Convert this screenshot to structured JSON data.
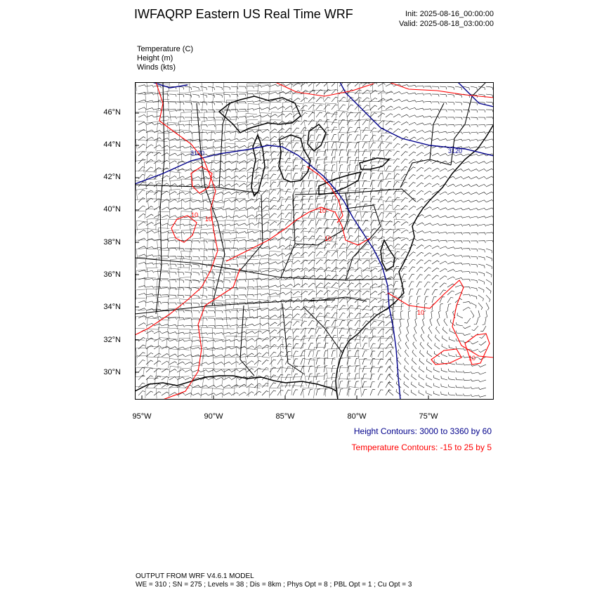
{
  "header": {
    "title": "IWFAQRP Eastern US Real Time WRF",
    "init": "Init: 2025-08-16_00:00:00",
    "valid": "Valid: 2025-08-18_03:00:00"
  },
  "fields": [
    "Temperature   (C)",
    "Height   (m)",
    "Winds   (kts)"
  ],
  "axes": {
    "lat_labels": [
      "46°N",
      "44°N",
      "42°N",
      "40°N",
      "38°N",
      "36°N",
      "34°N",
      "32°N",
      "30°N"
    ],
    "lon_labels": [
      "95°W",
      "90°W",
      "85°W",
      "80°W",
      "75°W"
    ]
  },
  "contour_labels": {
    "height": [
      "3120",
      "3120"
    ],
    "temperature": [
      "10",
      "10",
      "10",
      "10",
      "10",
      "10"
    ]
  },
  "legend": {
    "height": "Height Contours: 3000 to 3360 by 60",
    "temperature": "Temperature Contours: -15 to 25 by 5"
  },
  "footer": {
    "line1": "OUTPUT FROM WRF V4.6.1 MODEL",
    "line2": "WE = 310 ; SN = 275 ; Levels = 38 ; Dis = 8km ; Phys Opt = 8 ; PBL Opt = 1 ; Cu Opt = 3"
  },
  "colors": {
    "height": "#00008b",
    "temperature": "#ff0000",
    "map": "#000000"
  }
}
